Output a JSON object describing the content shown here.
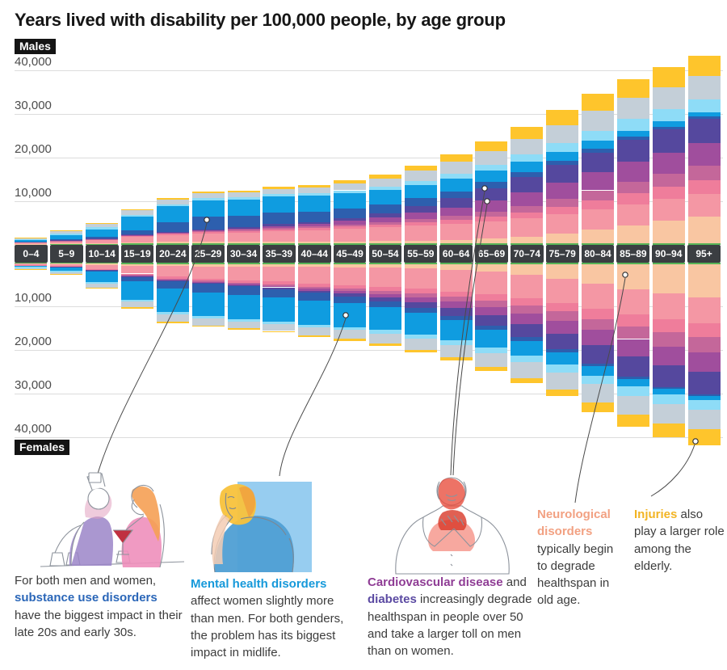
{
  "title": "Years lived with disability per 100,000 people, by age group",
  "male_label": "Males",
  "female_label": "Females",
  "axis": {
    "ticks": [
      {
        "label": "40,000",
        "value": 40000
      },
      {
        "label": "30,000",
        "value": 30000
      },
      {
        "label": "20,000",
        "value": 20000
      },
      {
        "label": "10,000",
        "value": 10000
      }
    ]
  },
  "chart_data": {
    "type": "bar",
    "stacked": true,
    "mirrored": true,
    "title": "Years lived with disability per 100,000 people, by age group",
    "unit": "years lived with disability per 100,000 people",
    "ylim": [
      0,
      45000
    ],
    "categories": [
      "0–4",
      "5–9",
      "10–14",
      "15–19",
      "20–24",
      "25–29",
      "30–34",
      "35–39",
      "40–44",
      "45–49",
      "50–54",
      "55–59",
      "60–64",
      "65–69",
      "70–74",
      "75–79",
      "80–84",
      "85–89",
      "90–94",
      "95+"
    ],
    "segment_keys": [
      "green",
      "peach",
      "pink",
      "rose",
      "mauve",
      "magenta",
      "indigo",
      "darkblue",
      "blue",
      "skyblue",
      "gray",
      "yellow"
    ],
    "segment_colors": {
      "green": "#57b457",
      "peach": "#f9c6a2",
      "pink": "#f497a4",
      "rose": "#ef7d9b",
      "mauve": "#c4679a",
      "magenta": "#a04e9d",
      "indigo": "#55489e",
      "darkblue": "#2d5fae",
      "blue": "#0f9ce0",
      "skyblue": "#8edcf7",
      "gray": "#c4cfd8",
      "yellow": "#fec52c"
    },
    "segment_labels": {
      "peach": "Neurological disorders",
      "magenta": "Cardiovascular disease",
      "indigo": "Diabetes",
      "darkblue": "Substance use disorders",
      "blue": "Mental health disorders",
      "yellow": "Injuries"
    },
    "series": [
      {
        "name": "Males",
        "values": [
          [
            150,
            100,
            350,
            50,
            0,
            0,
            50,
            100,
            250,
            250,
            350,
            50
          ],
          [
            200,
            150,
            500,
            100,
            50,
            50,
            50,
            150,
            1000,
            350,
            600,
            100
          ],
          [
            250,
            200,
            700,
            150,
            50,
            50,
            100,
            300,
            1800,
            400,
            800,
            200
          ],
          [
            300,
            300,
            1200,
            250,
            100,
            100,
            150,
            1000,
            3000,
            500,
            1000,
            300
          ],
          [
            300,
            350,
            1600,
            300,
            150,
            150,
            200,
            2200,
            3600,
            500,
            1000,
            350
          ],
          [
            300,
            400,
            1900,
            350,
            200,
            200,
            250,
            2800,
            3800,
            550,
            1050,
            400
          ],
          [
            300,
            400,
            2100,
            400,
            250,
            300,
            300,
            2700,
            3700,
            550,
            1100,
            400
          ],
          [
            300,
            450,
            2400,
            450,
            300,
            450,
            400,
            2600,
            3700,
            550,
            1200,
            500
          ],
          [
            300,
            450,
            2600,
            500,
            350,
            550,
            500,
            2400,
            3600,
            550,
            1300,
            600
          ],
          [
            300,
            500,
            2900,
            550,
            450,
            800,
            700,
            2200,
            3500,
            600,
            1600,
            800
          ],
          [
            300,
            550,
            3200,
            600,
            550,
            1100,
            1000,
            2000,
            3300,
            700,
            1900,
            1000
          ],
          [
            300,
            650,
            3500,
            700,
            700,
            1500,
            1500,
            1800,
            3100,
            900,
            2300,
            1250
          ],
          [
            300,
            800,
            3800,
            800,
            900,
            2000,
            2100,
            1600,
            2900,
            1100,
            2700,
            1700
          ],
          [
            300,
            1100,
            4000,
            1000,
            1200,
            2600,
            2800,
            1400,
            2600,
            1400,
            3100,
            2200
          ],
          [
            300,
            1600,
            4200,
            1300,
            1500,
            3200,
            3400,
            1200,
            2300,
            1700,
            3600,
            2800
          ],
          [
            300,
            2300,
            4400,
            1700,
            1900,
            3700,
            4000,
            1000,
            2000,
            2000,
            4100,
            3500
          ],
          [
            300,
            3200,
            4600,
            2100,
            2300,
            4200,
            4500,
            900,
            1700,
            2300,
            4600,
            4000
          ],
          [
            300,
            4200,
            4800,
            2500,
            2700,
            4600,
            4900,
            800,
            1400,
            2600,
            4900,
            4300
          ],
          [
            300,
            5200,
            5000,
            2800,
            3000,
            4900,
            5200,
            700,
            1200,
            2800,
            5100,
            4500
          ],
          [
            300,
            6200,
            5200,
            3100,
            3300,
            5200,
            5500,
            600,
            1000,
            3000,
            5300,
            4700
          ]
        ]
      },
      {
        "name": "Females",
        "values": [
          [
            150,
            100,
            350,
            50,
            0,
            0,
            50,
            100,
            200,
            250,
            300,
            50
          ],
          [
            200,
            150,
            450,
            100,
            50,
            50,
            50,
            100,
            700,
            300,
            450,
            100
          ],
          [
            250,
            250,
            900,
            200,
            50,
            50,
            100,
            300,
            2400,
            400,
            900,
            200
          ],
          [
            300,
            400,
            1800,
            350,
            150,
            100,
            150,
            1000,
            4200,
            500,
            1300,
            250
          ],
          [
            300,
            500,
            2400,
            450,
            200,
            150,
            200,
            1800,
            5300,
            550,
            1650,
            300
          ],
          [
            300,
            550,
            2800,
            500,
            250,
            200,
            250,
            2000,
            5400,
            550,
            1600,
            300
          ],
          [
            300,
            600,
            3100,
            550,
            300,
            250,
            300,
            2000,
            5500,
            550,
            1500,
            350
          ],
          [
            300,
            650,
            3400,
            600,
            350,
            350,
            400,
            1900,
            5500,
            600,
            1600,
            350
          ],
          [
            300,
            700,
            3800,
            700,
            450,
            450,
            500,
            1800,
            5500,
            650,
            1850,
            400
          ],
          [
            300,
            750,
            4100,
            800,
            550,
            600,
            650,
            1600,
            5400,
            700,
            2000,
            450
          ],
          [
            300,
            850,
            4400,
            900,
            700,
            800,
            900,
            1400,
            5200,
            800,
            2250,
            500
          ],
          [
            300,
            1000,
            4700,
            1050,
            900,
            1100,
            1300,
            1200,
            4900,
            950,
            2600,
            600
          ],
          [
            300,
            1300,
            5000,
            1200,
            1100,
            1500,
            1800,
            1000,
            4500,
            1100,
            2900,
            700
          ],
          [
            300,
            1800,
            5200,
            1400,
            1400,
            2000,
            2400,
            900,
            4000,
            1300,
            3200,
            900
          ],
          [
            300,
            2500,
            5400,
            1700,
            1700,
            2500,
            3000,
            800,
            3400,
            1500,
            3600,
            1200
          ],
          [
            300,
            3400,
            5500,
            2000,
            2100,
            3000,
            3600,
            700,
            2800,
            1700,
            3900,
            1600
          ],
          [
            300,
            4600,
            5600,
            2400,
            2500,
            3500,
            4200,
            600,
            2200,
            1900,
            4200,
            2200
          ],
          [
            300,
            5800,
            5700,
            2800,
            2900,
            4000,
            4700,
            500,
            1700,
            2100,
            4400,
            2700
          ],
          [
            300,
            6800,
            5800,
            3100,
            3200,
            4300,
            5000,
            400,
            1300,
            2200,
            4500,
            3100
          ],
          [
            300,
            7600,
            5900,
            3300,
            3400,
            4500,
            5100,
            400,
            1000,
            2200,
            4400,
            3700
          ]
        ]
      }
    ]
  },
  "caption_colors": {
    "darkblue": "#2a66b8",
    "blue": "#1699da",
    "magenta": "#8f3d95",
    "indigo": "#5b4aa2",
    "peach": "#f2a182",
    "yellow": "#f2b424"
  },
  "captions": [
    {
      "parts": [
        {
          "t": "For both men and women, "
        },
        {
          "t": "substance use disorders",
          "c": "darkblue"
        },
        {
          "t": " have the biggest impact in their late 20s and early 30s."
        }
      ]
    },
    {
      "parts": [
        {
          "t": "Mental health disorders",
          "c": "blue"
        },
        {
          "t": " affect women slightly more than men. For both genders, the problem has its biggest impact in midlife."
        }
      ]
    },
    {
      "parts": [
        {
          "t": "Cardiovascular disease",
          "c": "magenta"
        },
        {
          "t": " and "
        },
        {
          "t": "diabetes",
          "c": "indigo"
        },
        {
          "t": " increasingly degrade healthspan in people over 50 and take a larger toll on men than on women."
        }
      ]
    },
    {
      "parts": [
        {
          "t": "Neurological disorders",
          "c": "peach"
        },
        {
          "t": " typically begin to degrade healthspan in old age."
        }
      ]
    },
    {
      "parts": [
        {
          "t": "Injuries",
          "c": "yellow"
        },
        {
          "t": " also play a larger role among the elderly."
        }
      ]
    }
  ]
}
